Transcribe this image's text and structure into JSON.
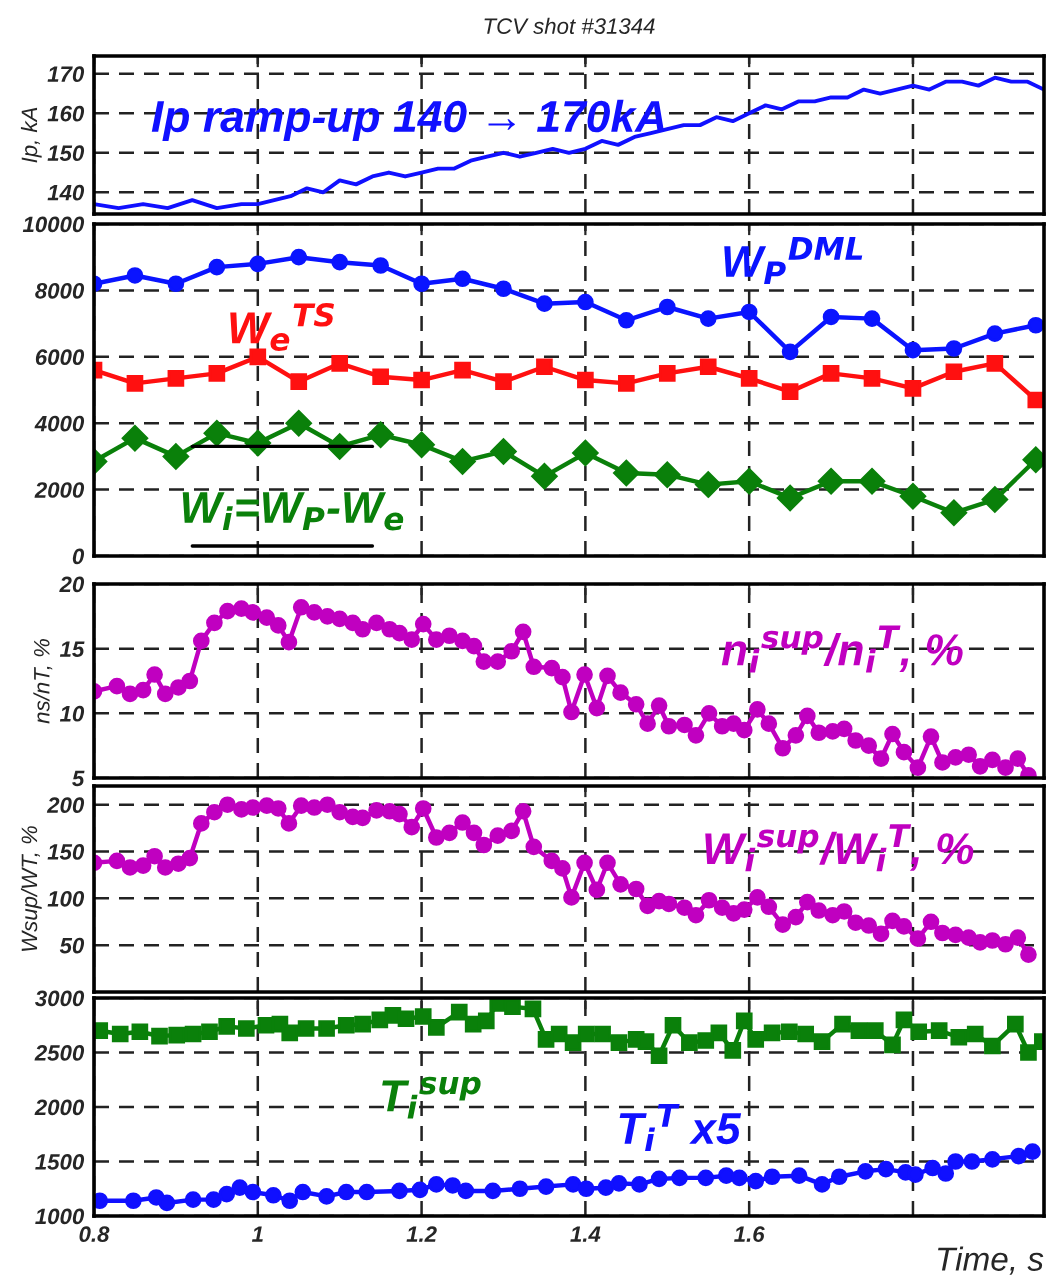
{
  "chart_data": [
    {
      "type": "line",
      "title": "TCV shot #31344",
      "ylabel": "Ip, kA",
      "xlim": [
        0.8,
        1.96
      ],
      "ylim": [
        134.5,
        174.5
      ],
      "yticks": [
        140,
        150,
        160,
        170
      ],
      "xticks": [
        0.8,
        1,
        1.2,
        1.4,
        1.6,
        1.8
      ],
      "grid": true,
      "tick_labels": "y",
      "legend": false,
      "marker": "none",
      "line_style": "solid",
      "x": [
        0.8,
        0.83,
        0.86,
        0.89,
        0.92,
        0.95,
        0.98,
        1.0,
        1.02,
        1.04,
        1.06,
        1.08,
        1.1,
        1.12,
        1.14,
        1.16,
        1.18,
        1.2,
        1.22,
        1.24,
        1.26,
        1.28,
        1.3,
        1.32,
        1.34,
        1.36,
        1.38,
        1.4,
        1.42,
        1.44,
        1.46,
        1.48,
        1.5,
        1.52,
        1.54,
        1.56,
        1.58,
        1.6,
        1.62,
        1.64,
        1.66,
        1.68,
        1.7,
        1.72,
        1.74,
        1.76,
        1.78,
        1.8,
        1.82,
        1.84,
        1.86,
        1.88,
        1.9,
        1.92,
        1.94,
        1.96
      ],
      "series": [
        {
          "name": "Ip ramp-up 140 → 170kA",
          "color": "#1010ff",
          "values": [
            137,
            136,
            137,
            136,
            138,
            136,
            137,
            137,
            138,
            139,
            141,
            140,
            143,
            142,
            144,
            145,
            144,
            145,
            146,
            146,
            148,
            149,
            150,
            149,
            150,
            151,
            150,
            151,
            153,
            152,
            154,
            155,
            156,
            157,
            157,
            159,
            158,
            160,
            162,
            161,
            163,
            163,
            164,
            164,
            166,
            165,
            166,
            167,
            166,
            168,
            168,
            167,
            169,
            168,
            168,
            166
          ]
        }
      ]
    },
    {
      "type": "line",
      "xlim": [
        0.8,
        1.96
      ],
      "ylim": [
        0,
        10000
      ],
      "yticks": [
        0,
        2000,
        4000,
        6000,
        8000,
        10000
      ],
      "xticks": [
        0.8,
        1,
        1.2,
        1.4,
        1.6,
        1.8
      ],
      "grid": true,
      "tick_labels": "y",
      "legend": false,
      "line_style": "solid",
      "x": [
        0.8,
        0.85,
        0.9,
        0.95,
        1.0,
        1.05,
        1.1,
        1.15,
        1.2,
        1.25,
        1.3,
        1.35,
        1.4,
        1.45,
        1.5,
        1.55,
        1.6,
        1.65,
        1.7,
        1.75,
        1.8,
        1.85,
        1.9,
        1.95
      ],
      "series": [
        {
          "name": "W$_{P}$$^{DML}$",
          "color": "#0a14ff",
          "marker": "circle",
          "values": [
            8200,
            8450,
            8200,
            8700,
            8800,
            9000,
            8850,
            8750,
            8200,
            8350,
            8050,
            7600,
            7650,
            7100,
            7500,
            7150,
            7350,
            6150,
            7200,
            7150,
            6200,
            6250,
            6700,
            6950
          ]
        },
        {
          "name": "W$_{e}$$^{TS}$",
          "color": "#ff1010",
          "marker": "square",
          "values": [
            5600,
            5200,
            5350,
            5500,
            6000,
            5250,
            5800,
            5400,
            5300,
            5600,
            5250,
            5700,
            5300,
            5200,
            5500,
            5700,
            5350,
            4950,
            5500,
            5350,
            5050,
            5550,
            5800,
            4700
          ]
        },
        {
          "name": "W$_{i}$=W$_{P}$-W$_{e}$",
          "color": "#0a800a",
          "marker": "diamond",
          "values": [
            2850,
            3550,
            3000,
            3700,
            3400,
            4000,
            3300,
            3650,
            3350,
            2850,
            3150,
            2400,
            3100,
            2500,
            2450,
            2150,
            2250,
            1750,
            2250,
            2250,
            1800,
            1300,
            1700,
            2900
          ]
        }
      ]
    },
    {
      "type": "line",
      "ylabel": "ns/nT, %",
      "xlim": [
        0.8,
        1.96
      ],
      "ylim": [
        5,
        20
      ],
      "yticks": [
        5,
        10,
        15,
        20
      ],
      "xticks": [
        0.8,
        1,
        1.2,
        1.4,
        1.6,
        1.8
      ],
      "grid": true,
      "tick_labels": "y",
      "legend": false,
      "marker": "circle",
      "line_style": "solid",
      "x": [
        0.8,
        0.828,
        0.844,
        0.86,
        0.874,
        0.887,
        0.903,
        0.917,
        0.931,
        0.947,
        0.963,
        0.98,
        0.994,
        1.011,
        1.025,
        1.038,
        1.053,
        1.069,
        1.085,
        1.1,
        1.116,
        1.128,
        1.145,
        1.161,
        1.173,
        1.188,
        1.202,
        1.218,
        1.234,
        1.25,
        1.264,
        1.276,
        1.293,
        1.31,
        1.324,
        1.337,
        1.359,
        1.372,
        1.383,
        1.399,
        1.414,
        1.427,
        1.443,
        1.462,
        1.476,
        1.49,
        1.502,
        1.521,
        1.535,
        1.551,
        1.567,
        1.581,
        1.594,
        1.61,
        1.624,
        1.641,
        1.657,
        1.671,
        1.685,
        1.702,
        1.716,
        1.73,
        1.746,
        1.761,
        1.775,
        1.789,
        1.806,
        1.822,
        1.836,
        1.852,
        1.868,
        1.882,
        1.897,
        1.913,
        1.928,
        1.941
      ],
      "series": [
        {
          "name": "n$_{i}$$^{sup}$/n$_{i}$$^{T}$, %",
          "color": "#c000c0",
          "values": [
            11.7,
            12.1,
            11.5,
            11.8,
            13.0,
            11.5,
            12.0,
            12.5,
            15.6,
            17.0,
            17.9,
            18.1,
            17.8,
            17.4,
            16.8,
            15.5,
            18.2,
            17.8,
            17.5,
            17.3,
            17.0,
            16.5,
            17.0,
            16.5,
            16.2,
            15.7,
            16.9,
            15.7,
            16.0,
            15.6,
            15.2,
            14.0,
            14.0,
            14.8,
            16.3,
            13.6,
            13.5,
            12.8,
            10.1,
            13.0,
            10.4,
            12.9,
            11.6,
            10.7,
            9.2,
            10.6,
            9.0,
            9.1,
            8.3,
            10.0,
            9.0,
            9.2,
            8.7,
            10.3,
            9.2,
            7.3,
            8.3,
            9.8,
            8.5,
            8.6,
            8.8,
            7.9,
            7.5,
            6.5,
            8.4,
            7.0,
            5.8,
            8.2,
            6.2,
            6.6,
            6.8,
            5.9,
            6.4,
            5.8,
            6.5,
            5.2
          ]
        }
      ]
    },
    {
      "type": "line",
      "ylabel": "Wsup/WT, %",
      "xlim": [
        0.8,
        1.96
      ],
      "ylim": [
        0,
        220
      ],
      "yticks": [
        50,
        100,
        150,
        200
      ],
      "xticks": [
        0.8,
        1,
        1.2,
        1.4,
        1.6,
        1.8
      ],
      "grid": true,
      "tick_labels": "y",
      "legend": false,
      "marker": "circle",
      "line_style": "solid",
      "x": [
        0.8,
        0.828,
        0.844,
        0.86,
        0.874,
        0.887,
        0.903,
        0.917,
        0.931,
        0.947,
        0.963,
        0.98,
        0.994,
        1.011,
        1.025,
        1.038,
        1.053,
        1.069,
        1.085,
        1.1,
        1.116,
        1.128,
        1.145,
        1.161,
        1.173,
        1.188,
        1.202,
        1.218,
        1.234,
        1.25,
        1.264,
        1.276,
        1.293,
        1.31,
        1.324,
        1.337,
        1.359,
        1.372,
        1.383,
        1.399,
        1.414,
        1.427,
        1.443,
        1.462,
        1.476,
        1.49,
        1.502,
        1.521,
        1.535,
        1.551,
        1.567,
        1.581,
        1.594,
        1.61,
        1.624,
        1.641,
        1.657,
        1.671,
        1.685,
        1.702,
        1.716,
        1.73,
        1.746,
        1.761,
        1.775,
        1.789,
        1.806,
        1.822,
        1.836,
        1.852,
        1.868,
        1.882,
        1.897,
        1.913,
        1.928,
        1.941
      ],
      "series": [
        {
          "name": "W$_{i}$$^{sup}$/W$_{i}$$^{T}$, %",
          "color": "#c000c0",
          "values": [
            138,
            140,
            133,
            135,
            145,
            133,
            137,
            143,
            180,
            192,
            200,
            195,
            197,
            199,
            196,
            180,
            199,
            197,
            200,
            192,
            187,
            186,
            194,
            193,
            190,
            176,
            196,
            165,
            170,
            181,
            170,
            157,
            167,
            172,
            193,
            155,
            140,
            132,
            101,
            138,
            109,
            138,
            115,
            110,
            92,
            97,
            94,
            90,
            82,
            98,
            90,
            84,
            88,
            101,
            91,
            72,
            80,
            96,
            87,
            82,
            86,
            74,
            71,
            62,
            76,
            70,
            57,
            75,
            63,
            61,
            58,
            53,
            55,
            51,
            58,
            40
          ]
        }
      ]
    },
    {
      "type": "line",
      "xlabel": "Time, s",
      "xlim": [
        0.8,
        1.96
      ],
      "ylim": [
        1000,
        3000
      ],
      "yticks": [
        1000,
        1500,
        2000,
        2500,
        3000
      ],
      "xticks": [
        0.8,
        1,
        1.2,
        1.4,
        1.6,
        {
          "value": 1.8,
          "label": null
        }
      ],
      "grid": true,
      "legend": false,
      "line_style": "solid",
      "series": [
        {
          "name": "T$_{i}$$^{sup}$",
          "color": "#0a800a",
          "marker": "square",
          "x": [
            0.807,
            0.832,
            0.856,
            0.88,
            0.901,
            0.921,
            0.941,
            0.962,
            0.986,
            1.01,
            1.027,
            1.039,
            1.059,
            1.084,
            1.108,
            1.128,
            1.149,
            1.165,
            1.181,
            1.202,
            1.218,
            1.246,
            1.263,
            1.279,
            1.293,
            1.311,
            1.336,
            1.352,
            1.368,
            1.385,
            1.401,
            1.421,
            1.441,
            1.462,
            1.474,
            1.49,
            1.507,
            1.527,
            1.547,
            1.563,
            1.58,
            1.594,
            1.608,
            1.628,
            1.649,
            1.669,
            1.689,
            1.714,
            1.734,
            1.754,
            1.775,
            1.789,
            1.807,
            1.832,
            1.856,
            1.876,
            1.897,
            1.925,
            1.941,
            1.958
          ],
          "values": [
            2700,
            2670,
            2690,
            2650,
            2660,
            2670,
            2690,
            2740,
            2720,
            2750,
            2760,
            2680,
            2720,
            2720,
            2750,
            2760,
            2800,
            2840,
            2810,
            2830,
            2730,
            2870,
            2760,
            2790,
            2950,
            2920,
            2900,
            2620,
            2670,
            2590,
            2670,
            2670,
            2590,
            2620,
            2600,
            2470,
            2750,
            2590,
            2610,
            2680,
            2520,
            2790,
            2620,
            2680,
            2690,
            2670,
            2600,
            2760,
            2700,
            2700,
            2570,
            2800,
            2690,
            2700,
            2640,
            2670,
            2560,
            2760,
            2500,
            2600
          ]
        },
        {
          "name": "T$_{i}$$^{T}$ x5",
          "color": "#1010ff",
          "marker": "circle",
          "x": [
            0.807,
            0.848,
            0.876,
            0.889,
            0.921,
            0.946,
            0.962,
            0.978,
            0.994,
            1.019,
            1.039,
            1.055,
            1.084,
            1.108,
            1.133,
            1.173,
            1.198,
            1.218,
            1.238,
            1.254,
            1.287,
            1.32,
            1.352,
            1.385,
            1.401,
            1.425,
            1.441,
            1.466,
            1.49,
            1.515,
            1.547,
            1.572,
            1.588,
            1.608,
            1.628,
            1.661,
            1.689,
            1.71,
            1.742,
            1.767,
            1.791,
            1.803,
            1.824,
            1.84,
            1.852,
            1.872,
            1.897,
            1.929,
            1.946
          ],
          "values": [
            1140,
            1140,
            1170,
            1120,
            1150,
            1150,
            1200,
            1260,
            1220,
            1190,
            1140,
            1220,
            1180,
            1220,
            1220,
            1230,
            1240,
            1290,
            1280,
            1230,
            1230,
            1250,
            1270,
            1290,
            1250,
            1260,
            1300,
            1290,
            1340,
            1350,
            1350,
            1370,
            1350,
            1320,
            1360,
            1370,
            1290,
            1360,
            1410,
            1430,
            1400,
            1380,
            1440,
            1390,
            1500,
            1500,
            1520,
            1550,
            1590
          ]
        }
      ]
    }
  ]
}
